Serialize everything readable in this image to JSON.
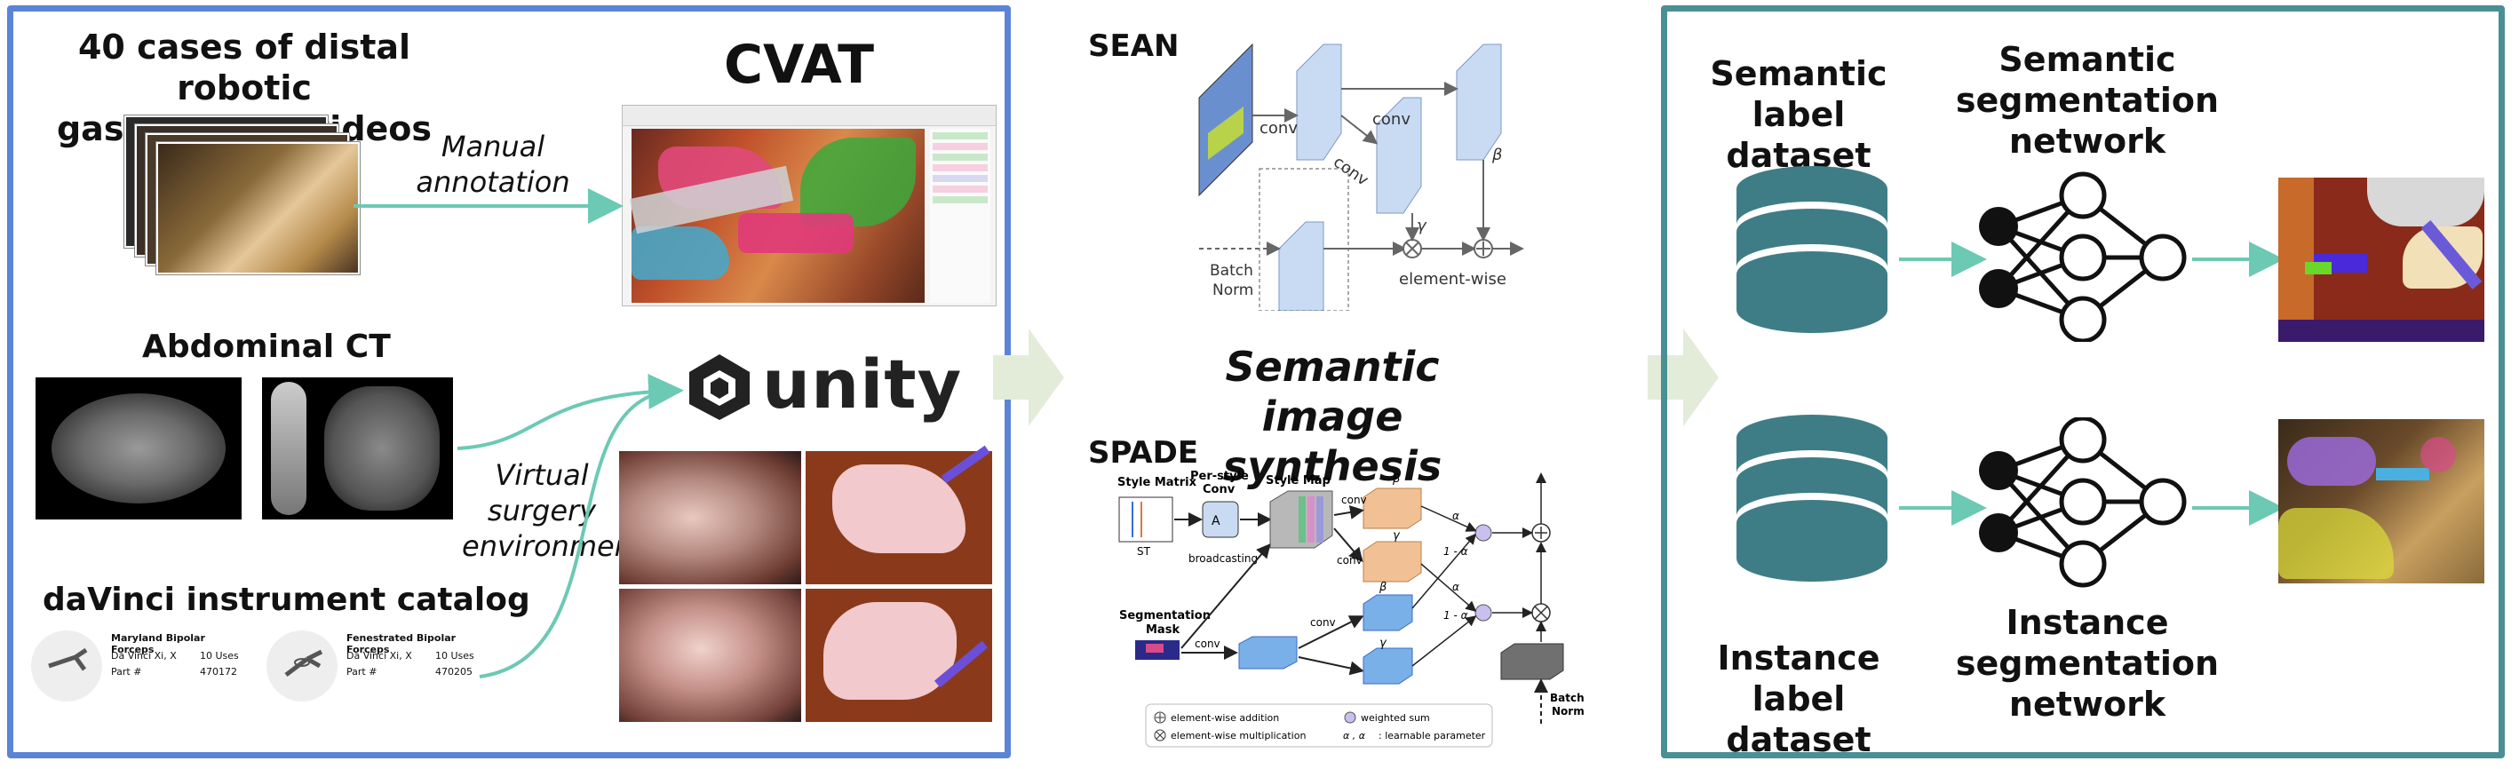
{
  "left_panel": {
    "videos_title": "40 cases of distal robotic\ngastrectomy videos",
    "manual_annotation": "Manual\nannotation",
    "cvat_title": "CVAT",
    "ct_title": "Abdominal CT",
    "unity_title": "unity",
    "virtual_surgery": "Virtual\nsurgery\nenvironment",
    "catalog_title": "daVinci instrument catalog",
    "catalog_items": [
      {
        "name": "Maryland Bipolar Forceps",
        "model": "Da Vinci Xi, X",
        "uses": "10 Uses",
        "part_label": "Part #",
        "part": "470172"
      },
      {
        "name": "Fenestrated Bipolar Forceps",
        "model": "Da Vinci Xi, X",
        "uses": "10 Uses",
        "part_label": "Part #",
        "part": "470205"
      }
    ]
  },
  "middle": {
    "sean_label": "SEAN",
    "sean": {
      "conv1": "conv",
      "conv2": "conv",
      "conv3": "conv",
      "batch_norm": "Batch\nNorm",
      "element_wise": "element-wise",
      "gamma": "γ",
      "beta": "β"
    },
    "synthesis_title": "Semantic image\nsynthesis",
    "spade_label": "SPADE",
    "spade": {
      "style_matrix": "Style Matrix",
      "st": "ST",
      "per_style_conv": "Per-style\nConv",
      "ai": "A",
      "ai_sub": "ij",
      "style_map": "Style Map",
      "broadcasting": "broadcasting",
      "conv_a": "conv",
      "conv_b": "conv",
      "conv_c": "conv",
      "conv_d": "conv",
      "beta_s": "β",
      "gamma_s": "γ",
      "beta_o": "β",
      "gamma_o": "γ",
      "alpha_b": "α",
      "one_minus_ab": "1 - α",
      "alpha_g": "α",
      "one_minus_ag": "1 - α",
      "seg_mask": "Segmentation\nMask",
      "batch_norm": "Batch\nNorm",
      "legend_add": "element-wise addition",
      "legend_mul": "element-wise multiplication",
      "legend_wsum": "weighted sum",
      "legend_param": ": learnable parameter",
      "legend_param_sym": "α , α"
    }
  },
  "right_panel": {
    "semantic_dataset": "Semantic label\ndataset",
    "semantic_network": "Semantic\nsegmentation\nnetwork",
    "instance_dataset": "Instance label\ndataset",
    "instance_network": "Instance\nsegmentation\nnetwork"
  },
  "colors": {
    "left_border": "#5b84d6",
    "right_border": "#4a8f94",
    "arrow": "#6cc9b4",
    "big_arrow": "#e3ecd9",
    "database": "#3f7d86"
  }
}
